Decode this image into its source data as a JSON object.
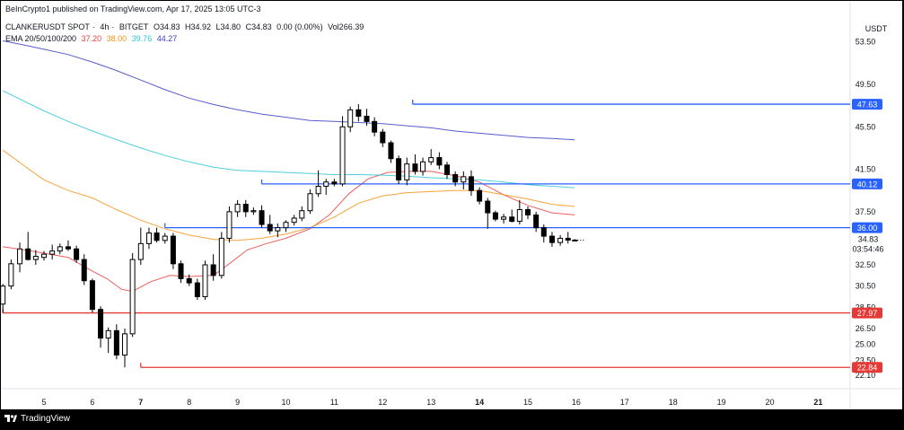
{
  "header": {
    "published": "BeInCrypto1 published on TradingView.com, Apr 17, 2025 13:05 UTC-3",
    "symbol": "CLANKERUSDT SPOT",
    "interval": "4h",
    "exchange": "BITGET",
    "open": "O34.83",
    "high": "H34.92",
    "low": "L34.80",
    "close": "C34.83",
    "change": "0.00 (0.00%)",
    "volume": "Vol266.39",
    "ema_label": "EMA 20/50/100/200",
    "ema20": "37.20",
    "ema50": "38.00",
    "ema100": "39.76",
    "ema200": "44.27"
  },
  "currency": "USDT",
  "footer": {
    "brand": "TradingView"
  },
  "colors": {
    "up": "#ffffff",
    "down": "#000000",
    "ema20": "#e8433f",
    "ema50": "#f7931a",
    "ema100": "#2fc6d6",
    "ema200": "#3b3fc4",
    "resistance": "#2962ff",
    "support": "#e53935"
  },
  "chart_data": {
    "type": "candlestick",
    "ylim": [
      21.0,
      55.5
    ],
    "x_ticks": [
      {
        "label": "5",
        "x": 5,
        "bold": false
      },
      {
        "label": "6",
        "x": 6,
        "bold": false
      },
      {
        "label": "7",
        "x": 7,
        "bold": true
      },
      {
        "label": "8",
        "x": 8,
        "bold": false
      },
      {
        "label": "9",
        "x": 9,
        "bold": false
      },
      {
        "label": "10",
        "x": 10,
        "bold": false
      },
      {
        "label": "11",
        "x": 11,
        "bold": false
      },
      {
        "label": "12",
        "x": 12,
        "bold": false
      },
      {
        "label": "13",
        "x": 13,
        "bold": false
      },
      {
        "label": "14",
        "x": 14,
        "bold": true
      },
      {
        "label": "15",
        "x": 15,
        "bold": false
      },
      {
        "label": "16",
        "x": 16,
        "bold": false
      },
      {
        "label": "17",
        "x": 17,
        "bold": false
      },
      {
        "label": "18",
        "x": 18,
        "bold": false
      },
      {
        "label": "19",
        "x": 19,
        "bold": false
      },
      {
        "label": "20",
        "x": 20,
        "bold": false
      },
      {
        "label": "21",
        "x": 21,
        "bold": true
      }
    ],
    "y_ticks": [
      "53.50",
      "49.50",
      "45.50",
      "41.50",
      "37.50",
      "32.50",
      "30.50",
      "28.50",
      "26.50",
      "25.00",
      "23.50",
      "22.10"
    ],
    "levels": [
      {
        "label": "47.63",
        "value": 47.63,
        "kind": "resistance",
        "from_x": 12.62
      },
      {
        "label": "40.12",
        "value": 40.12,
        "kind": "resistance",
        "from_x": 9.5
      },
      {
        "label": "36.00",
        "value": 36.0,
        "kind": "resistance",
        "from_x": 7.5
      },
      {
        "label": "27.97",
        "value": 27.97,
        "kind": "support",
        "from_x": 4.15
      },
      {
        "label": "22.84",
        "value": 22.84,
        "kind": "support",
        "from_x": 7.0
      }
    ],
    "last_price": {
      "label": "34.83",
      "value": 34.83,
      "countdown": "03:54:46"
    },
    "candles": [
      {
        "x": 4.15,
        "o": 28.8,
        "h": 30.7,
        "l": 27.97,
        "c": 30.5
      },
      {
        "x": 4.32,
        "o": 30.5,
        "h": 33.0,
        "l": 30.2,
        "c": 32.6
      },
      {
        "x": 4.5,
        "o": 32.6,
        "h": 34.6,
        "l": 31.8,
        "c": 34.0
      },
      {
        "x": 4.67,
        "o": 34.0,
        "h": 35.6,
        "l": 32.9,
        "c": 33.0
      },
      {
        "x": 4.83,
        "o": 33.0,
        "h": 33.9,
        "l": 32.5,
        "c": 33.3
      },
      {
        "x": 5.0,
        "o": 33.2,
        "h": 33.8,
        "l": 32.9,
        "c": 33.5
      },
      {
        "x": 5.17,
        "o": 33.5,
        "h": 34.4,
        "l": 33.0,
        "c": 33.8
      },
      {
        "x": 5.33,
        "o": 33.8,
        "h": 34.5,
        "l": 33.5,
        "c": 34.2
      },
      {
        "x": 5.5,
        "o": 34.2,
        "h": 34.8,
        "l": 33.8,
        "c": 34.0
      },
      {
        "x": 5.67,
        "o": 34.0,
        "h": 34.3,
        "l": 32.7,
        "c": 33.0
      },
      {
        "x": 5.83,
        "o": 33.0,
        "h": 33.5,
        "l": 30.6,
        "c": 31.0
      },
      {
        "x": 6.0,
        "o": 31.0,
        "h": 31.2,
        "l": 28.0,
        "c": 28.3
      },
      {
        "x": 6.17,
        "o": 28.3,
        "h": 28.6,
        "l": 24.7,
        "c": 25.6
      },
      {
        "x": 6.33,
        "o": 25.6,
        "h": 26.6,
        "l": 24.2,
        "c": 26.3
      },
      {
        "x": 6.5,
        "o": 26.3,
        "h": 26.9,
        "l": 23.6,
        "c": 24.0
      },
      {
        "x": 6.67,
        "o": 24.0,
        "h": 26.5,
        "l": 22.84,
        "c": 26.0
      },
      {
        "x": 6.83,
        "o": 26.0,
        "h": 33.6,
        "l": 25.7,
        "c": 33.0
      },
      {
        "x": 7.0,
        "o": 33.0,
        "h": 36.0,
        "l": 32.5,
        "c": 34.5
      },
      {
        "x": 7.17,
        "o": 34.5,
        "h": 36.0,
        "l": 34.0,
        "c": 35.5
      },
      {
        "x": 7.33,
        "o": 35.5,
        "h": 36.0,
        "l": 34.6,
        "c": 34.8
      },
      {
        "x": 7.5,
        "o": 34.8,
        "h": 35.5,
        "l": 34.5,
        "c": 35.2
      },
      {
        "x": 7.67,
        "o": 35.2,
        "h": 35.5,
        "l": 32.1,
        "c": 32.6
      },
      {
        "x": 7.83,
        "o": 32.6,
        "h": 32.9,
        "l": 30.8,
        "c": 31.2
      },
      {
        "x": 8.0,
        "o": 31.2,
        "h": 31.6,
        "l": 30.5,
        "c": 30.8
      },
      {
        "x": 8.17,
        "o": 30.8,
        "h": 31.2,
        "l": 29.2,
        "c": 29.5
      },
      {
        "x": 8.33,
        "o": 29.5,
        "h": 32.9,
        "l": 29.2,
        "c": 32.5
      },
      {
        "x": 8.5,
        "o": 32.5,
        "h": 33.5,
        "l": 31.0,
        "c": 31.5
      },
      {
        "x": 8.67,
        "o": 31.5,
        "h": 35.6,
        "l": 31.2,
        "c": 35.0
      },
      {
        "x": 8.83,
        "o": 35.0,
        "h": 38.0,
        "l": 34.6,
        "c": 37.5
      },
      {
        "x": 9.0,
        "o": 37.5,
        "h": 38.6,
        "l": 37.0,
        "c": 38.2
      },
      {
        "x": 9.17,
        "o": 38.2,
        "h": 38.6,
        "l": 37.0,
        "c": 37.5
      },
      {
        "x": 9.33,
        "o": 37.5,
        "h": 37.9,
        "l": 37.2,
        "c": 37.6
      },
      {
        "x": 9.5,
        "o": 37.6,
        "h": 38.1,
        "l": 36.0,
        "c": 36.3
      },
      {
        "x": 9.67,
        "o": 36.3,
        "h": 37.2,
        "l": 35.4,
        "c": 35.7
      },
      {
        "x": 9.83,
        "o": 35.7,
        "h": 36.4,
        "l": 35.1,
        "c": 36.0
      },
      {
        "x": 10.0,
        "o": 36.0,
        "h": 36.7,
        "l": 35.6,
        "c": 36.5
      },
      {
        "x": 10.17,
        "o": 36.5,
        "h": 37.2,
        "l": 36.2,
        "c": 36.9
      },
      {
        "x": 10.33,
        "o": 36.9,
        "h": 38.0,
        "l": 36.6,
        "c": 37.6
      },
      {
        "x": 10.5,
        "o": 37.6,
        "h": 39.6,
        "l": 37.3,
        "c": 39.2
      },
      {
        "x": 10.67,
        "o": 39.2,
        "h": 41.4,
        "l": 38.9,
        "c": 39.9
      },
      {
        "x": 10.83,
        "o": 39.9,
        "h": 40.6,
        "l": 39.1,
        "c": 40.3
      },
      {
        "x": 11.0,
        "o": 40.3,
        "h": 40.6,
        "l": 39.9,
        "c": 40.12
      },
      {
        "x": 11.17,
        "o": 40.12,
        "h": 46.5,
        "l": 39.9,
        "c": 45.5
      },
      {
        "x": 11.33,
        "o": 45.5,
        "h": 47.4,
        "l": 45.0,
        "c": 47.1
      },
      {
        "x": 11.5,
        "o": 47.1,
        "h": 47.63,
        "l": 46.0,
        "c": 46.5
      },
      {
        "x": 11.67,
        "o": 46.5,
        "h": 47.2,
        "l": 45.6,
        "c": 46.0
      },
      {
        "x": 11.83,
        "o": 46.0,
        "h": 46.4,
        "l": 44.6,
        "c": 45.0
      },
      {
        "x": 12.0,
        "o": 45.0,
        "h": 45.3,
        "l": 43.6,
        "c": 44.0
      },
      {
        "x": 12.17,
        "o": 44.0,
        "h": 44.2,
        "l": 42.1,
        "c": 42.5
      },
      {
        "x": 12.33,
        "o": 42.5,
        "h": 42.8,
        "l": 40.1,
        "c": 40.5
      },
      {
        "x": 12.5,
        "o": 40.5,
        "h": 42.6,
        "l": 40.0,
        "c": 42.0
      },
      {
        "x": 12.67,
        "o": 42.0,
        "h": 42.9,
        "l": 41.0,
        "c": 41.3
      },
      {
        "x": 12.83,
        "o": 41.3,
        "h": 42.6,
        "l": 40.9,
        "c": 42.2
      },
      {
        "x": 13.0,
        "o": 42.2,
        "h": 43.4,
        "l": 41.9,
        "c": 42.6
      },
      {
        "x": 13.17,
        "o": 42.6,
        "h": 43.1,
        "l": 41.5,
        "c": 41.9
      },
      {
        "x": 13.33,
        "o": 41.9,
        "h": 42.2,
        "l": 40.6,
        "c": 41.0
      },
      {
        "x": 13.5,
        "o": 41.0,
        "h": 41.3,
        "l": 39.9,
        "c": 40.3
      },
      {
        "x": 13.67,
        "o": 40.3,
        "h": 41.3,
        "l": 39.6,
        "c": 40.8
      },
      {
        "x": 13.83,
        "o": 40.8,
        "h": 41.4,
        "l": 39.0,
        "c": 39.5
      },
      {
        "x": 14.0,
        "o": 39.5,
        "h": 39.8,
        "l": 38.2,
        "c": 38.5
      },
      {
        "x": 14.17,
        "o": 38.5,
        "h": 38.8,
        "l": 35.9,
        "c": 37.4
      },
      {
        "x": 14.33,
        "o": 37.4,
        "h": 37.6,
        "l": 36.6,
        "c": 36.8
      },
      {
        "x": 14.5,
        "o": 36.8,
        "h": 37.3,
        "l": 36.4,
        "c": 37.0
      },
      {
        "x": 14.67,
        "o": 37.0,
        "h": 37.7,
        "l": 36.5,
        "c": 36.6
      },
      {
        "x": 14.83,
        "o": 36.6,
        "h": 38.6,
        "l": 36.3,
        "c": 37.7
      },
      {
        "x": 15.0,
        "o": 37.7,
        "h": 38.0,
        "l": 36.8,
        "c": 37.2
      },
      {
        "x": 15.17,
        "o": 37.2,
        "h": 37.5,
        "l": 35.6,
        "c": 36.0
      },
      {
        "x": 15.33,
        "o": 36.0,
        "h": 36.3,
        "l": 34.6,
        "c": 35.2
      },
      {
        "x": 15.5,
        "o": 35.2,
        "h": 35.6,
        "l": 34.2,
        "c": 34.6
      },
      {
        "x": 15.67,
        "o": 34.6,
        "h": 35.3,
        "l": 34.3,
        "c": 35.0
      },
      {
        "x": 15.83,
        "o": 35.0,
        "h": 35.6,
        "l": 34.5,
        "c": 34.83
      },
      {
        "x": 15.97,
        "o": 34.83,
        "h": 34.92,
        "l": 34.8,
        "c": 34.83
      }
    ],
    "ema": [
      {
        "name": "EMA 20",
        "color": "#e8433f",
        "points": [
          [
            4.15,
            34.2
          ],
          [
            4.6,
            33.9
          ],
          [
            5.0,
            33.6
          ],
          [
            5.5,
            33.2
          ],
          [
            6.0,
            31.9
          ],
          [
            6.3,
            31.2
          ],
          [
            6.6,
            30.2
          ],
          [
            6.83,
            30.0
          ],
          [
            7.2,
            30.9
          ],
          [
            7.6,
            31.5
          ],
          [
            8.0,
            31.4
          ],
          [
            8.5,
            31.5
          ],
          [
            8.83,
            32.6
          ],
          [
            9.2,
            33.9
          ],
          [
            9.6,
            34.5
          ],
          [
            10.0,
            35.0
          ],
          [
            10.5,
            35.9
          ],
          [
            10.9,
            37.2
          ],
          [
            11.3,
            39.2
          ],
          [
            11.7,
            40.6
          ],
          [
            12.1,
            41.2
          ],
          [
            12.5,
            41.3
          ],
          [
            13.0,
            41.3
          ],
          [
            13.5,
            40.9
          ],
          [
            14.0,
            40.3
          ],
          [
            14.5,
            39.1
          ],
          [
            15.0,
            38.1
          ],
          [
            15.5,
            37.4
          ],
          [
            15.97,
            37.2
          ]
        ]
      },
      {
        "name": "EMA 50",
        "color": "#f7931a",
        "points": [
          [
            4.15,
            43.3
          ],
          [
            4.6,
            41.8
          ],
          [
            5.0,
            40.5
          ],
          [
            5.5,
            39.5
          ],
          [
            6.0,
            38.8
          ],
          [
            6.5,
            37.7
          ],
          [
            7.0,
            36.7
          ],
          [
            7.5,
            35.9
          ],
          [
            8.0,
            35.3
          ],
          [
            8.5,
            34.9
          ],
          [
            9.0,
            34.8
          ],
          [
            9.5,
            35.0
          ],
          [
            10.0,
            35.4
          ],
          [
            10.5,
            36.0
          ],
          [
            11.0,
            37.0
          ],
          [
            11.5,
            38.3
          ],
          [
            12.0,
            39.0
          ],
          [
            12.5,
            39.3
          ],
          [
            13.0,
            39.4
          ],
          [
            13.5,
            39.5
          ],
          [
            14.0,
            39.5
          ],
          [
            14.5,
            39.1
          ],
          [
            15.0,
            38.7
          ],
          [
            15.5,
            38.2
          ],
          [
            15.97,
            38.0
          ]
        ]
      },
      {
        "name": "EMA 100",
        "color": "#2fc6d6",
        "points": [
          [
            4.15,
            48.9
          ],
          [
            4.6,
            47.9
          ],
          [
            5.0,
            47.0
          ],
          [
            5.5,
            46.0
          ],
          [
            6.0,
            45.1
          ],
          [
            6.5,
            44.3
          ],
          [
            7.0,
            43.5
          ],
          [
            7.5,
            42.8
          ],
          [
            8.0,
            42.2
          ],
          [
            8.5,
            41.7
          ],
          [
            9.0,
            41.4
          ],
          [
            9.5,
            41.3
          ],
          [
            10.0,
            41.2
          ],
          [
            10.5,
            41.1
          ],
          [
            11.0,
            41.0
          ],
          [
            11.5,
            41.0
          ],
          [
            12.0,
            40.95
          ],
          [
            12.5,
            40.85
          ],
          [
            13.0,
            40.7
          ],
          [
            13.5,
            40.6
          ],
          [
            14.0,
            40.5
          ],
          [
            14.5,
            40.3
          ],
          [
            15.0,
            40.05
          ],
          [
            15.5,
            39.9
          ],
          [
            15.97,
            39.76
          ]
        ]
      },
      {
        "name": "EMA 200",
        "color": "#3b3fc4",
        "points": [
          [
            4.15,
            53.6
          ],
          [
            4.6,
            53.2
          ],
          [
            5.0,
            52.8
          ],
          [
            5.5,
            52.3
          ],
          [
            6.0,
            51.6
          ],
          [
            6.5,
            50.8
          ],
          [
            7.0,
            49.9
          ],
          [
            7.5,
            49.0
          ],
          [
            8.0,
            48.2
          ],
          [
            8.5,
            47.6
          ],
          [
            9.0,
            47.1
          ],
          [
            9.5,
            46.7
          ],
          [
            10.0,
            46.4
          ],
          [
            10.5,
            46.1
          ],
          [
            11.0,
            46.0
          ],
          [
            11.5,
            45.9
          ],
          [
            12.0,
            45.8
          ],
          [
            12.5,
            45.6
          ],
          [
            13.0,
            45.4
          ],
          [
            13.5,
            45.1
          ],
          [
            14.0,
            44.9
          ],
          [
            14.5,
            44.7
          ],
          [
            15.0,
            44.5
          ],
          [
            15.5,
            44.4
          ],
          [
            15.97,
            44.27
          ]
        ]
      }
    ]
  }
}
